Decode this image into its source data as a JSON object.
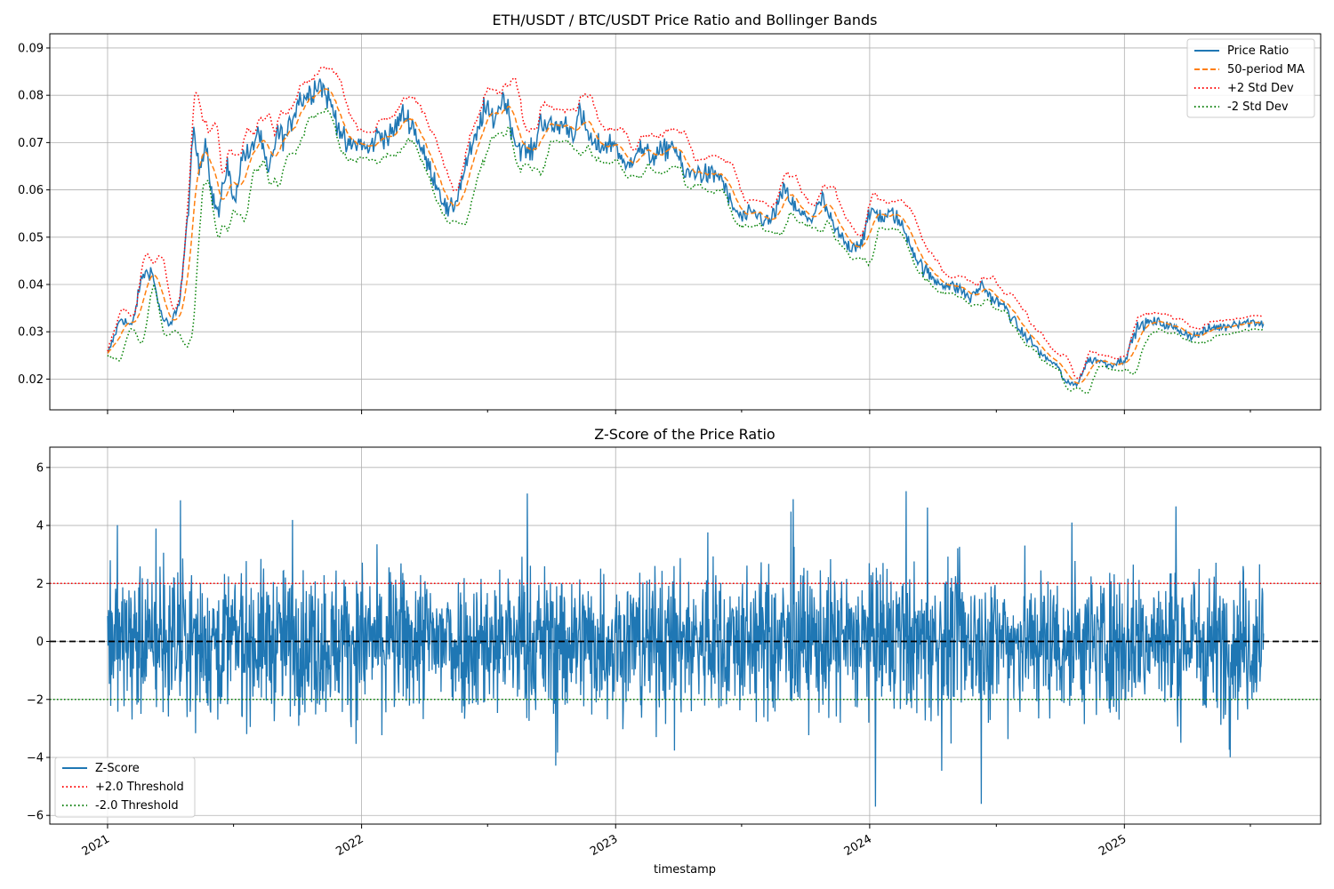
{
  "figure": {
    "colors": {
      "price_ratio": "#1f77b4",
      "ma": "#ff7f0e",
      "upper_band": "#d62728",
      "lower_band": "#2ca02c",
      "zscore": "#1f77b4",
      "upper_threshold": "#ff0000",
      "lower_threshold": "#008000",
      "zero_line": "#000000",
      "grid": "#b0b0b0"
    }
  },
  "chart_data": [
    {
      "type": "line",
      "title": "ETH/USDT / BTC/USDT Price Ratio and Bollinger Bands",
      "xlabel": "",
      "ylabel": "",
      "ylim": [
        0.0135,
        0.093
      ],
      "xlim": [
        "2020-10-10",
        "2025-10-10"
      ],
      "y_ticks": [
        "0.02",
        "0.03",
        "0.04",
        "0.05",
        "0.06",
        "0.07",
        "0.08",
        "0.09"
      ],
      "y_tick_values": [
        0.02,
        0.03,
        0.04,
        0.05,
        0.06,
        0.07,
        0.08,
        0.09
      ],
      "grid": true,
      "legend_position": "top-right",
      "x": [
        "2021-01-01",
        "2021-01-20",
        "2021-02-05",
        "2021-02-20",
        "2021-03-05",
        "2021-03-20",
        "2021-04-01",
        "2021-04-15",
        "2021-04-25",
        "2021-05-05",
        "2021-05-12",
        "2021-05-22",
        "2021-06-01",
        "2021-06-10",
        "2021-06-22",
        "2021-07-01",
        "2021-07-15",
        "2021-07-25",
        "2021-08-05",
        "2021-08-20",
        "2021-09-01",
        "2021-09-15",
        "2021-10-01",
        "2021-10-15",
        "2021-11-01",
        "2021-11-15",
        "2021-11-26",
        "2021-12-10",
        "2022-01-01",
        "2022-01-10",
        "2022-01-25",
        "2022-02-10",
        "2022-03-01",
        "2022-03-15",
        "2022-04-01",
        "2022-04-20",
        "2022-05-05",
        "2022-05-15",
        "2022-06-01",
        "2022-06-15",
        "2022-06-25",
        "2022-07-10",
        "2022-07-25",
        "2022-08-10",
        "2022-08-25",
        "2022-09-05",
        "2022-09-15",
        "2022-10-01",
        "2022-10-20",
        "2022-11-01",
        "2022-11-10",
        "2022-12-01",
        "2023-01-01",
        "2023-01-15",
        "2023-02-01",
        "2023-02-20",
        "2023-03-10",
        "2023-03-25",
        "2023-04-10",
        "2023-04-25",
        "2023-05-15",
        "2023-06-01",
        "2023-06-15",
        "2023-07-01",
        "2023-07-20",
        "2023-08-10",
        "2023-09-01",
        "2023-09-20",
        "2023-10-10",
        "2023-10-25",
        "2023-11-10",
        "2023-12-01",
        "2023-12-20",
        "2024-01-05",
        "2024-01-20",
        "2024-02-05",
        "2024-02-25",
        "2024-03-10",
        "2024-04-01",
        "2024-04-20",
        "2024-05-10",
        "2024-05-25",
        "2024-06-10",
        "2024-06-25",
        "2024-07-15",
        "2024-08-05",
        "2024-08-20",
        "2024-09-05",
        "2024-09-25",
        "2024-10-10",
        "2024-10-25",
        "2024-11-10",
        "2024-11-25",
        "2024-12-10",
        "2025-01-01",
        "2025-01-20",
        "2025-02-05",
        "2025-02-20",
        "2025-03-10",
        "2025-03-25",
        "2025-04-10",
        "2025-04-25",
        "2025-05-10",
        "2025-05-25",
        "2025-06-10",
        "2025-06-25",
        "2025-07-05",
        "2025-07-20"
      ],
      "x_ticks": [
        "2021",
        "2022",
        "2023",
        "2024",
        "2025"
      ],
      "x_tick_dates": [
        "2021-01-01",
        "2022-01-01",
        "2023-01-01",
        "2024-01-01",
        "2025-01-01"
      ],
      "series": [
        {
          "name": "Price Ratio",
          "values": [
            0.025,
            0.033,
            0.031,
            0.042,
            0.043,
            0.033,
            0.031,
            0.037,
            0.052,
            0.073,
            0.064,
            0.071,
            0.058,
            0.055,
            0.066,
            0.057,
            0.068,
            0.067,
            0.073,
            0.063,
            0.072,
            0.071,
            0.079,
            0.08,
            0.083,
            0.079,
            0.075,
            0.069,
            0.07,
            0.068,
            0.072,
            0.071,
            0.076,
            0.074,
            0.067,
            0.061,
            0.055,
            0.057,
            0.066,
            0.071,
            0.077,
            0.075,
            0.08,
            0.07,
            0.068,
            0.068,
            0.075,
            0.073,
            0.074,
            0.072,
            0.076,
            0.069,
            0.07,
            0.064,
            0.069,
            0.067,
            0.068,
            0.07,
            0.063,
            0.064,
            0.063,
            0.063,
            0.057,
            0.054,
            0.055,
            0.053,
            0.06,
            0.055,
            0.054,
            0.058,
            0.052,
            0.048,
            0.049,
            0.056,
            0.054,
            0.055,
            0.05,
            0.045,
            0.041,
            0.04,
            0.039,
            0.037,
            0.04,
            0.037,
            0.035,
            0.03,
            0.028,
            0.025,
            0.023,
            0.019,
            0.019,
            0.024,
            0.024,
            0.023,
            0.024,
            0.031,
            0.032,
            0.032,
            0.031,
            0.03,
            0.029,
            0.03,
            0.031,
            0.031,
            0.032,
            0.032,
            0.032,
            0.032
          ]
        },
        {
          "name": "50-period MA"
        },
        {
          "name": "+2 Std Dev"
        },
        {
          "name": "-2 Std Dev"
        }
      ]
    },
    {
      "type": "line",
      "title": "Z-Score of the Price Ratio",
      "xlabel": "timestamp",
      "ylabel": "",
      "ylim": [
        -6.3,
        6.7
      ],
      "xlim": [
        "2020-10-10",
        "2025-10-10"
      ],
      "y_ticks": [
        "−6",
        "−4",
        "−2",
        "0",
        "2",
        "4",
        "6"
      ],
      "y_tick_values": [
        -6,
        -4,
        -2,
        0,
        2,
        4,
        6
      ],
      "x_ticks": [
        "2021",
        "2022",
        "2023",
        "2024",
        "2025"
      ],
      "x_tick_dates": [
        "2021-01-01",
        "2022-01-01",
        "2023-01-01",
        "2024-01-01",
        "2025-01-01"
      ],
      "grid": true,
      "legend_position": "bottom-left",
      "series": [
        {
          "name": "Z-Score",
          "range": [
            -5.7,
            6.1
          ]
        },
        {
          "name": "+2.0 Threshold",
          "value": 2.0
        },
        {
          "name": "-2.0 Threshold",
          "value": -2.0
        }
      ],
      "zero_line": 0
    }
  ]
}
